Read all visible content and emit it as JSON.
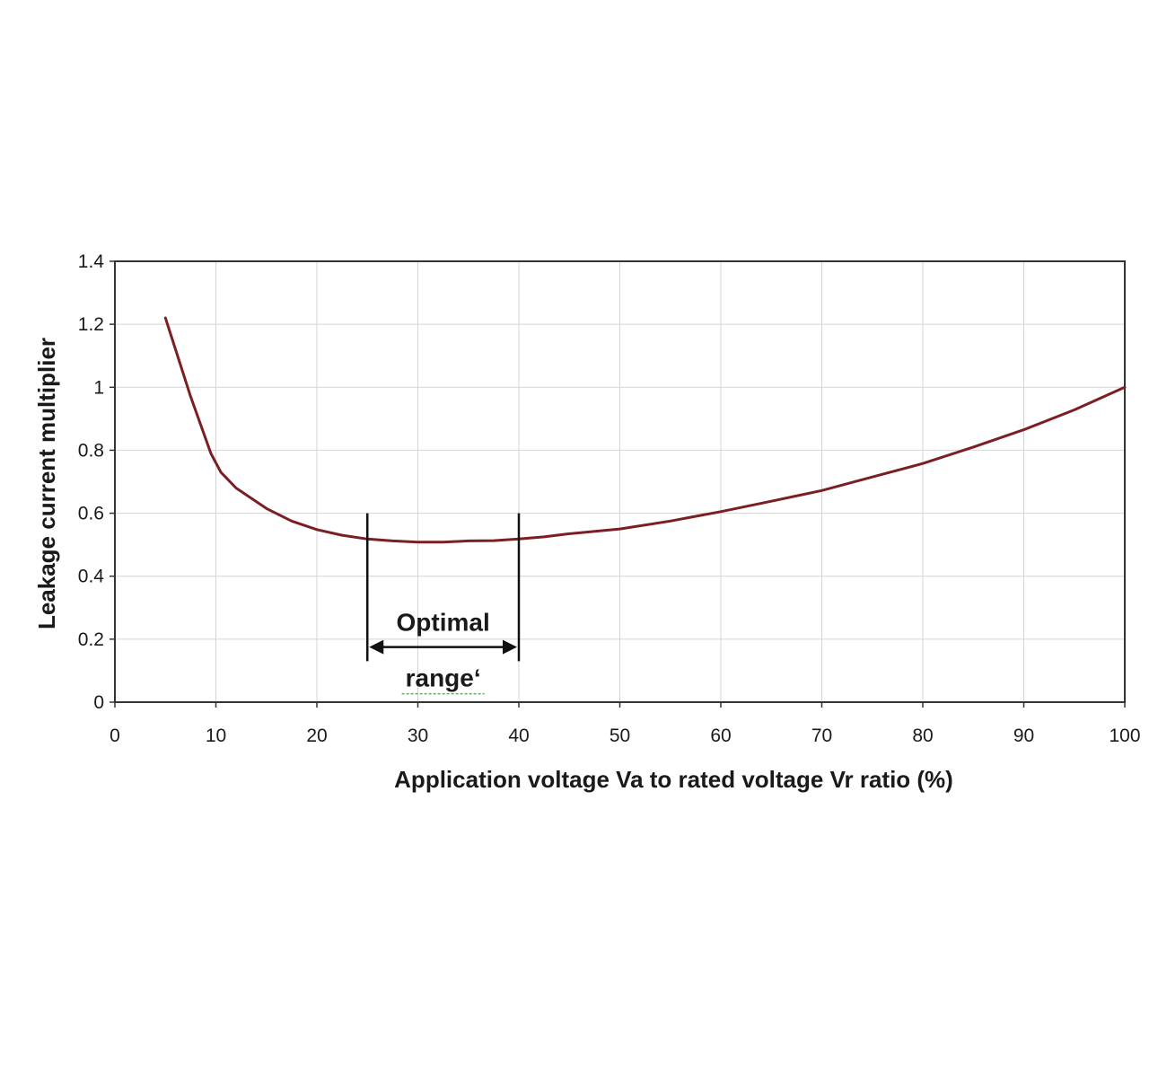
{
  "chart_data": {
    "type": "line",
    "title": "",
    "xlabel": "Application voltage Va to rated voltage Vr ratio (%)",
    "ylabel": "Leakage current multiplier",
    "xlim": [
      0,
      100
    ],
    "ylim": [
      0,
      1.4
    ],
    "x_ticks": [
      "0",
      "10",
      "20",
      "30",
      "40",
      "50",
      "60",
      "70",
      "80",
      "90",
      "100"
    ],
    "y_ticks": [
      "0",
      "0.2",
      "0.4",
      "0.6",
      "0.8",
      "1",
      "1.2",
      "1.4"
    ],
    "grid": true,
    "legend": "none",
    "series": [
      {
        "color": "#7a1f24",
        "x": [
          5,
          7.5,
          9.5,
          10.5,
          12,
          15,
          17.5,
          20,
          22.5,
          25,
          27.5,
          30,
          32.5,
          35,
          37.5,
          40,
          42.5,
          45,
          50,
          55,
          60,
          65,
          70,
          75,
          80,
          85,
          90,
          95,
          100
        ],
        "y": [
          1.22,
          0.97,
          0.79,
          0.73,
          0.68,
          0.615,
          0.575,
          0.548,
          0.53,
          0.518,
          0.512,
          0.508,
          0.508,
          0.512,
          0.513,
          0.518,
          0.525,
          0.535,
          0.55,
          0.575,
          0.605,
          0.638,
          0.672,
          0.715,
          0.758,
          0.81,
          0.865,
          0.928,
          1.0
        ]
      }
    ],
    "annotations": [
      {
        "type": "range",
        "x_start": 25,
        "x_end": 40,
        "label_line1": "Optimal",
        "label_line2": "range‘"
      }
    ]
  }
}
